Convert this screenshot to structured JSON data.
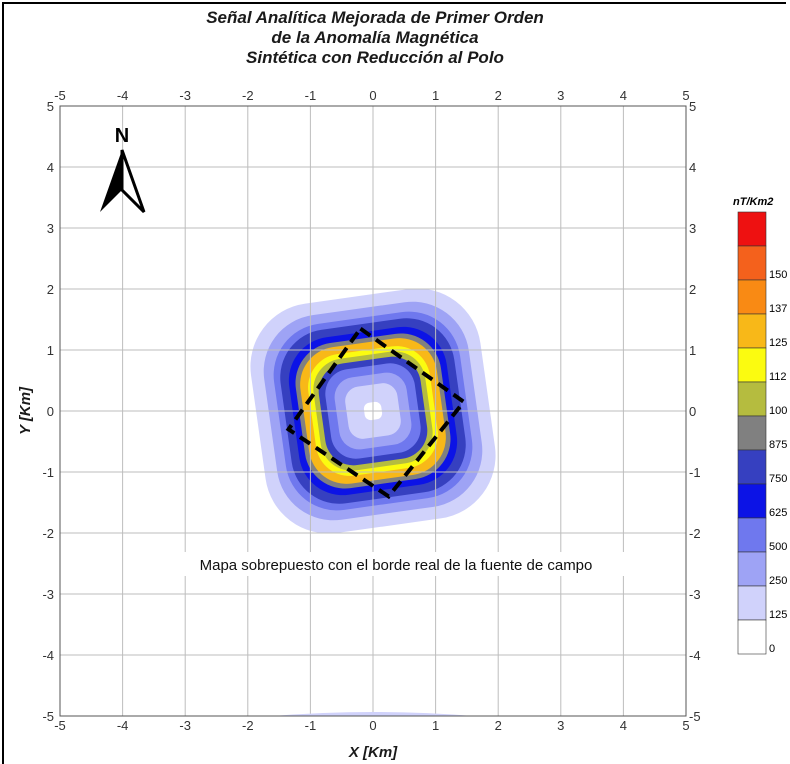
{
  "chart_data": {
    "type": "heatmap",
    "title_lines": [
      "Señal Analítica Mejorada de Primer Orden",
      "de la Anomalía Magnética",
      "Sintética con Reducción al Polo"
    ],
    "xlabel": "X [Km]",
    "ylabel": "Y [Km]",
    "xlim": [
      -5,
      5
    ],
    "ylim": [
      -5,
      5
    ],
    "xticks": [
      "-5",
      "-4",
      "-3",
      "-2",
      "-1",
      "0",
      "1",
      "2",
      "3",
      "4",
      "5"
    ],
    "yticks": [
      "-5",
      "-4",
      "-3",
      "-2",
      "-1",
      "0",
      "1",
      "2",
      "3",
      "4",
      "5"
    ],
    "grid": true,
    "north_label": "N",
    "annotation": "Mapa sobrepuesto con el borde real de la fuente de campo",
    "legend": {
      "title": "nT/Km2",
      "placement": "right",
      "levels": [
        {
          "label": "0",
          "color": "#ffffff"
        },
        {
          "label": "125",
          "color": "#d0d2fb"
        },
        {
          "label": "250",
          "color": "#9ea3f5"
        },
        {
          "label": "500",
          "color": "#6f78ee"
        },
        {
          "label": "625",
          "color": "#0c13e6"
        },
        {
          "label": "750",
          "color": "#3640c0"
        },
        {
          "label": "875",
          "color": "#808080"
        },
        {
          "label": "100",
          "color": "#b5bc3f"
        },
        {
          "label": "112",
          "color": "#fbfb10"
        },
        {
          "label": "125",
          "color": "#f8b818"
        },
        {
          "label": "137",
          "color": "#f98a14"
        },
        {
          "label": "150",
          "color": "#f4611c"
        },
        {
          "label": "",
          "color": "#ee1111"
        }
      ]
    },
    "source_boundary": {
      "style": "dashed",
      "color": "#000000",
      "vertices": [
        [
          -0.2,
          1.35
        ],
        [
          1.45,
          0.15
        ],
        [
          0.25,
          -1.4
        ],
        [
          -1.35,
          -0.3
        ]
      ]
    },
    "anomaly": {
      "center": [
        0,
        0
      ],
      "levels": [
        {
          "half_size": 1.85,
          "color": "#d0d2fb"
        },
        {
          "half_size": 1.65,
          "color": "#9ea3f5"
        },
        {
          "half_size": 1.5,
          "color": "#6f78ee"
        },
        {
          "half_size": 1.4,
          "color": "#3640c0"
        },
        {
          "half_size": 1.27,
          "color": "#0c13e6"
        },
        {
          "half_size": 1.17,
          "color": "#808080"
        },
        {
          "half_size": 1.1,
          "color": "#f8b818"
        },
        {
          "half_size": 0.98,
          "color": "#fbfb10"
        },
        {
          "half_size": 0.9,
          "color": "#b5bc3f"
        },
        {
          "half_size": 0.82,
          "color": "#3640c0"
        },
        {
          "half_size": 0.72,
          "color": "#6f78ee"
        },
        {
          "half_size": 0.58,
          "color": "#9ea3f5"
        },
        {
          "half_size": 0.42,
          "color": "#d0d2fb"
        },
        {
          "half_size": 0.14,
          "color": "#ffffff"
        }
      ]
    }
  }
}
